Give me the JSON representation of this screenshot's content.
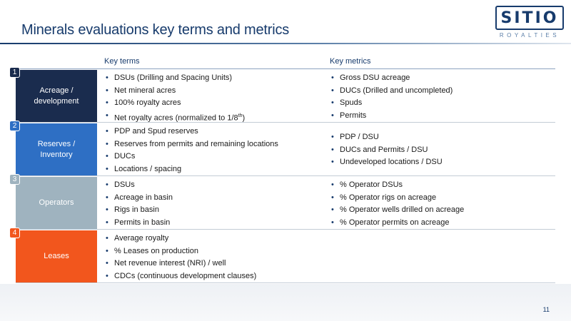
{
  "slide": {
    "title": "Minerals evaluations key terms and metrics",
    "page_number": "11"
  },
  "logo": {
    "main": "SITIO",
    "sub": "ROYALTIES",
    "color": "#173b6c"
  },
  "columns": {
    "terms": "Key terms",
    "metrics": "Key metrics"
  },
  "rows": [
    {
      "number": "1",
      "label": "Acreage /\ndevelopment",
      "color": "#1a2c4e",
      "terms": [
        "DSUs (Drilling and Spacing Units)",
        "Net mineral acres",
        "100% royalty acres",
        "Net royalty acres (normalized to 1/8th)"
      ],
      "metrics": [
        "Gross DSU acreage",
        "DUCs (Drilled and uncompleted)",
        "Spuds",
        "Permits"
      ]
    },
    {
      "number": "2",
      "label": "Reserves /\nInventory",
      "color": "#2e6fc4",
      "terms": [
        "PDP and Spud reserves",
        "Reserves from permits and remaining locations",
        "DUCs",
        "Locations / spacing"
      ],
      "metrics": [
        "PDP / DSU",
        "DUCs and Permits / DSU",
        "Undeveloped locations / DSU"
      ]
    },
    {
      "number": "3",
      "label": "Operators",
      "color": "#9fb3bf",
      "terms": [
        "DSUs",
        "Acreage in basin",
        "Rigs in basin",
        "Permits in basin"
      ],
      "metrics": [
        "% Operator DSUs",
        "% Operator rigs on acreage",
        "% Operator wells drilled on acreage",
        "% Operator permits on acreage"
      ]
    },
    {
      "number": "4",
      "label": "Leases",
      "color": "#f2561d",
      "terms": [
        "Average royalty",
        "% Leases on production",
        "Net revenue interest (NRI) / well",
        "CDCs (continuous development clauses)"
      ],
      "metrics": []
    }
  ]
}
